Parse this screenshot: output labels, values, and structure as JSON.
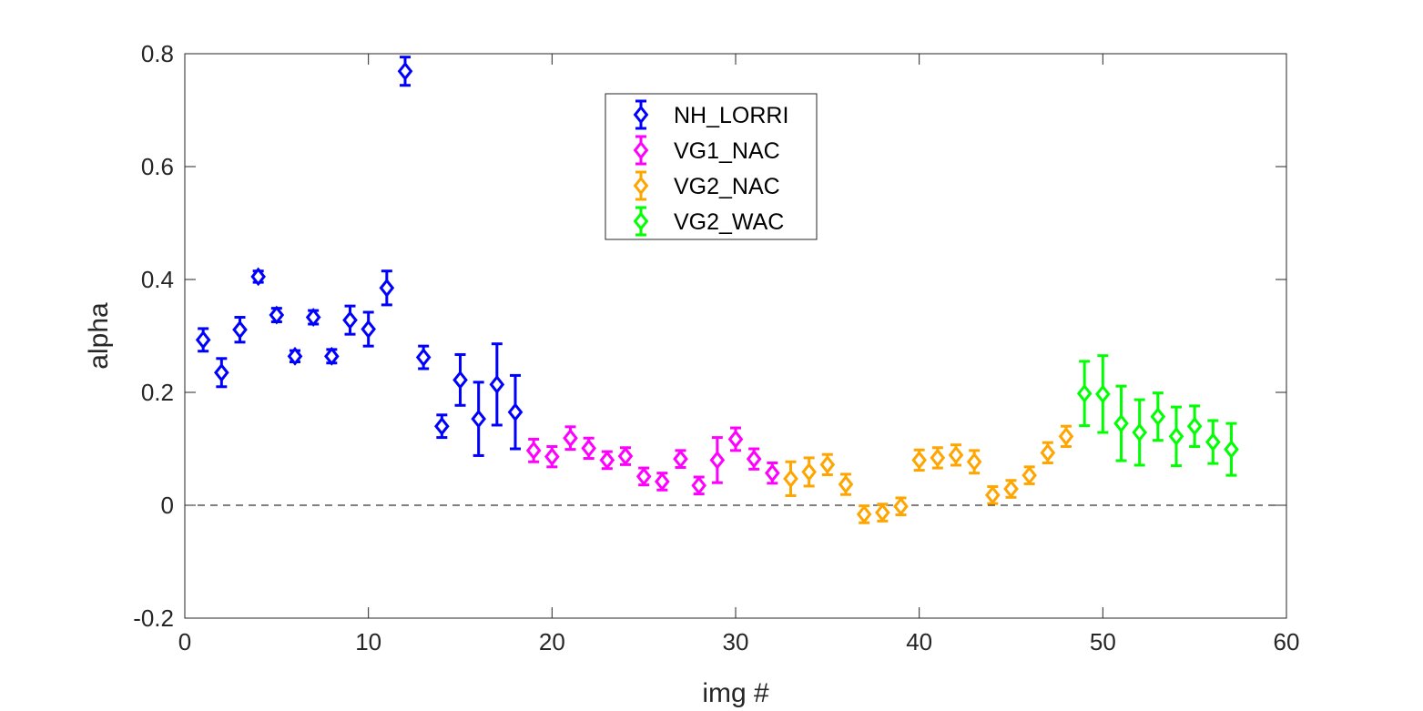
{
  "chart_data": {
    "type": "scatter",
    "title": "",
    "xlabel": "img #",
    "ylabel": "alpha",
    "xlim": [
      0,
      60
    ],
    "ylim": [
      -0.2,
      0.8
    ],
    "xticks": [
      "0",
      "10",
      "20",
      "30",
      "40",
      "50",
      "60"
    ],
    "yticks": [
      "-0.2",
      "0",
      "0.2",
      "0.4",
      "0.6",
      "0.8"
    ],
    "grid": false,
    "reference_line": {
      "y": 0,
      "style": "dashed",
      "color": "#000000"
    },
    "legend_position": "top-center",
    "marker": "diamond",
    "series": [
      {
        "name": "NH_LORRI",
        "color": "#0000ff",
        "x": [
          1,
          2,
          3,
          4,
          5,
          6,
          7,
          8,
          9,
          10,
          11,
          12,
          13,
          14,
          15,
          16,
          17,
          18
        ],
        "y": [
          0.293,
          0.235,
          0.311,
          0.405,
          0.337,
          0.264,
          0.333,
          0.264,
          0.328,
          0.312,
          0.385,
          0.769,
          0.262,
          0.14,
          0.222,
          0.153,
          0.214,
          0.165
        ],
        "err": [
          0.02,
          0.025,
          0.022,
          0.01,
          0.012,
          0.01,
          0.012,
          0.012,
          0.025,
          0.03,
          0.03,
          0.025,
          0.02,
          0.02,
          0.045,
          0.065,
          0.072,
          0.065
        ]
      },
      {
        "name": "VG1_NAC",
        "color": "#ff00ff",
        "x": [
          19,
          20,
          21,
          22,
          23,
          24,
          25,
          26,
          27,
          28,
          29,
          30,
          31,
          32
        ],
        "y": [
          0.097,
          0.086,
          0.119,
          0.101,
          0.08,
          0.087,
          0.051,
          0.042,
          0.082,
          0.035,
          0.08,
          0.117,
          0.082,
          0.057
        ],
        "err": [
          0.02,
          0.018,
          0.02,
          0.018,
          0.015,
          0.015,
          0.015,
          0.015,
          0.015,
          0.015,
          0.04,
          0.02,
          0.018,
          0.018
        ]
      },
      {
        "name": "VG2_NAC",
        "color": "#ffa500",
        "x": [
          33,
          34,
          35,
          36,
          37,
          38,
          39,
          40,
          41,
          42,
          43,
          44,
          45,
          46,
          47,
          48
        ],
        "y": [
          0.047,
          0.059,
          0.072,
          0.037,
          -0.016,
          -0.013,
          -0.002,
          0.08,
          0.084,
          0.089,
          0.077,
          0.018,
          0.029,
          0.053,
          0.093,
          0.122
        ],
        "err": [
          0.03,
          0.025,
          0.018,
          0.018,
          0.015,
          0.015,
          0.015,
          0.018,
          0.018,
          0.018,
          0.02,
          0.015,
          0.015,
          0.015,
          0.018,
          0.018
        ]
      },
      {
        "name": "VG2_WAC",
        "color": "#00ff00",
        "x": [
          49,
          50,
          51,
          52,
          53,
          54,
          55,
          56,
          57
        ],
        "y": [
          0.198,
          0.197,
          0.145,
          0.129,
          0.157,
          0.122,
          0.14,
          0.112,
          0.099
        ],
        "err": [
          0.057,
          0.068,
          0.066,
          0.058,
          0.042,
          0.052,
          0.036,
          0.038,
          0.046
        ]
      }
    ]
  }
}
